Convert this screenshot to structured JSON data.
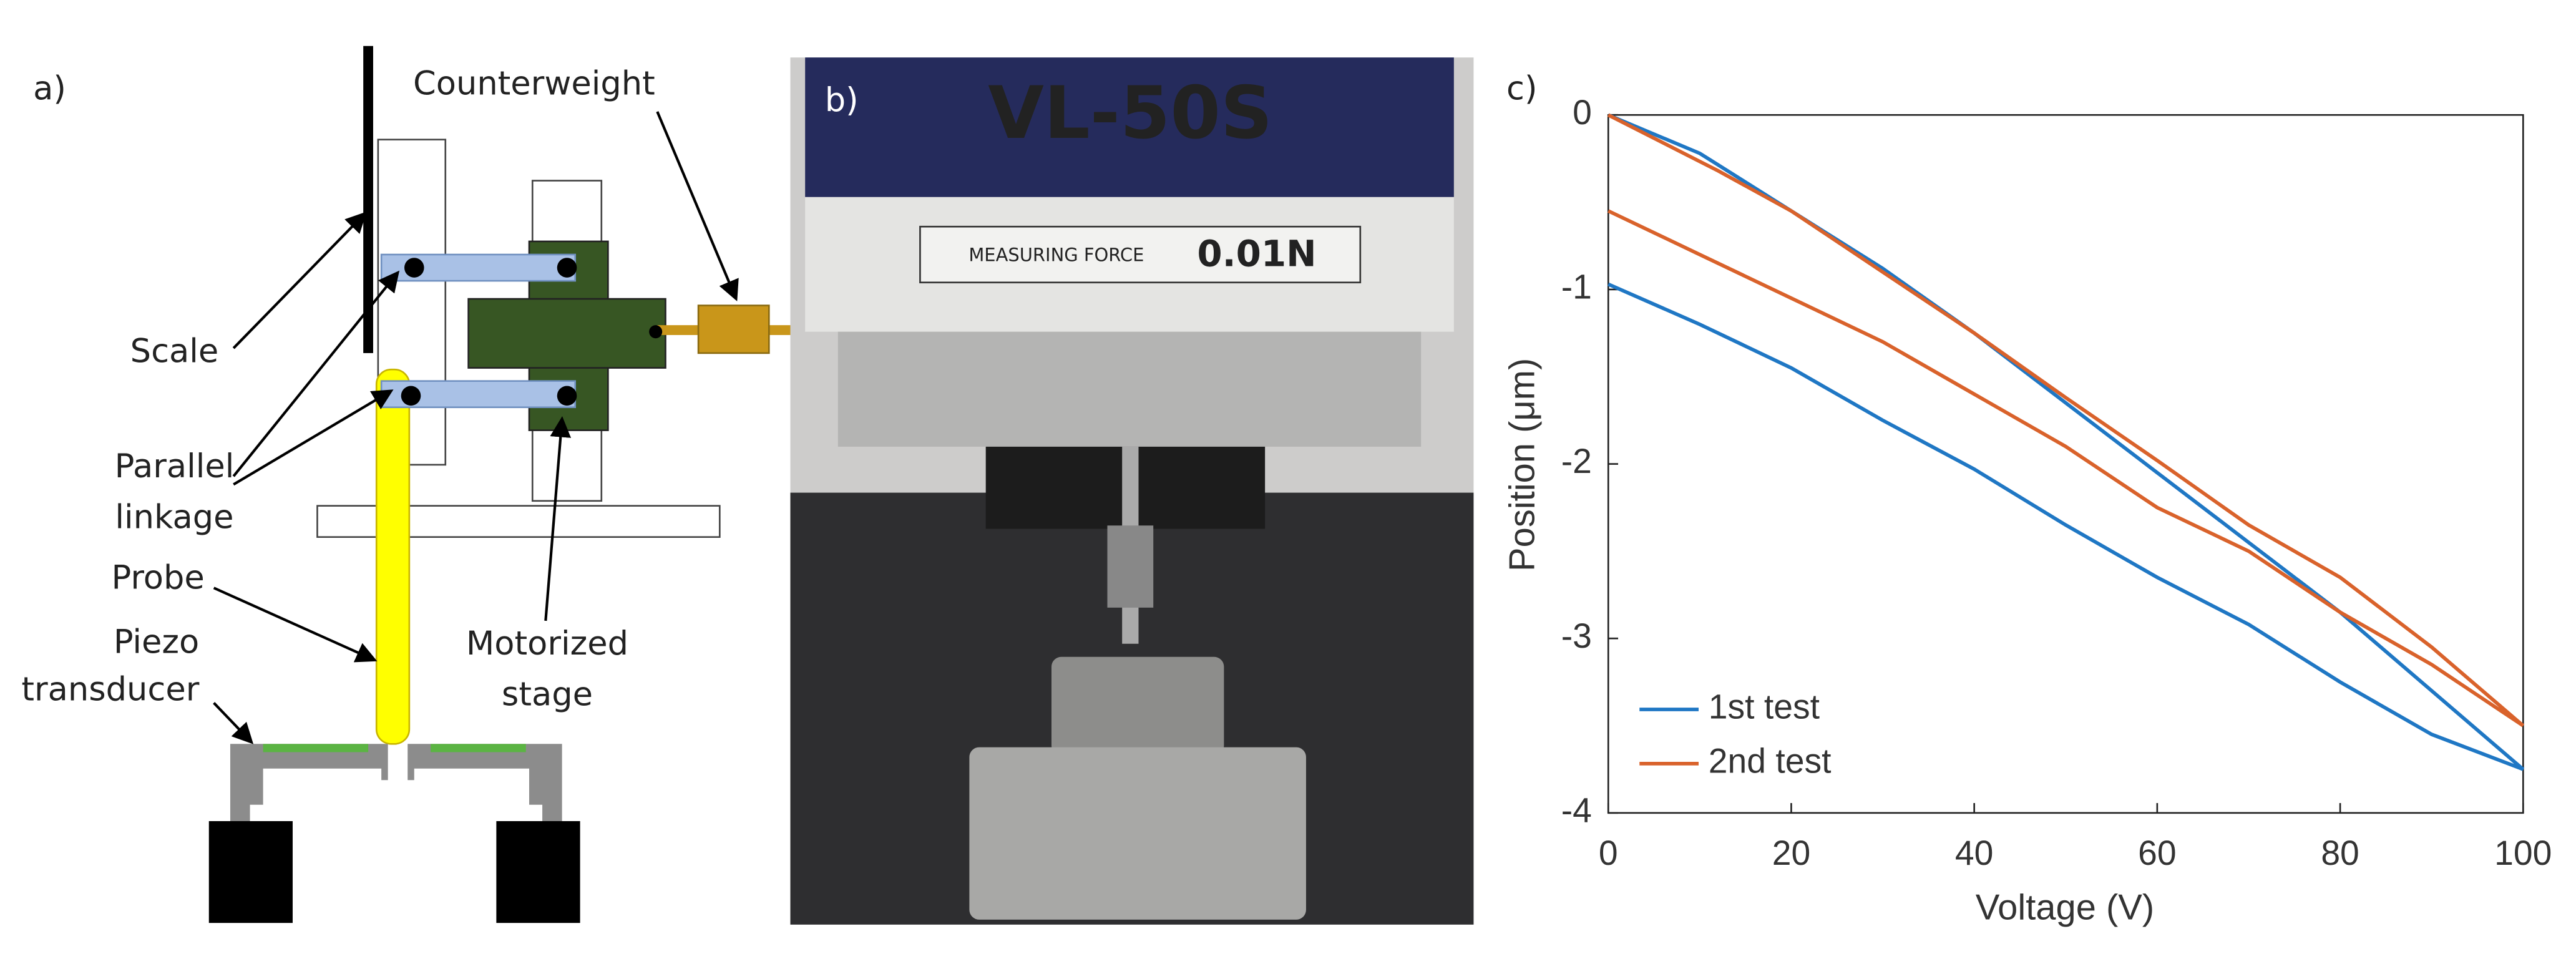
{
  "panel_a": {
    "label": "a)",
    "counterweight": "Counterweight",
    "scale": "Scale",
    "parallel": "Parallel",
    "linkage": "linkage",
    "probe": "Probe",
    "piezo": "Piezo",
    "transducer": "transducer",
    "motorized": "Motorized",
    "stage": "stage"
  },
  "panel_b": {
    "label": "b)",
    "model": "VL-50S",
    "force_label": "MEASURING FORCE",
    "force_value": "0.01N"
  },
  "chart_data": {
    "type": "line",
    "panel_label": "c)",
    "x_label": "Voltage (V)",
    "y_label": "Position (μm)",
    "xlim": [
      0,
      100
    ],
    "ylim": [
      -4,
      0
    ],
    "xticks": [
      0,
      20,
      40,
      60,
      80,
      100
    ],
    "yticks": [
      0,
      -1,
      -2,
      -3,
      -4
    ],
    "legend": "lower left",
    "series": [
      {
        "name": "1st test",
        "color": "#1f77c4",
        "x": [
          0,
          10,
          20,
          30,
          40,
          50,
          60,
          70,
          80,
          90,
          100,
          90,
          80,
          70,
          60,
          50,
          40,
          30,
          20,
          10,
          0
        ],
        "values": [
          -0.97,
          -1.2,
          -1.45,
          -1.75,
          -2.03,
          -2.35,
          -2.65,
          -2.92,
          -3.25,
          -3.55,
          -3.75,
          -3.3,
          -2.85,
          -2.45,
          -2.05,
          -1.65,
          -1.25,
          -0.88,
          -0.55,
          -0.22,
          0
        ]
      },
      {
        "name": "2nd test",
        "color": "#d9622b",
        "x": [
          0,
          10,
          20,
          30,
          40,
          50,
          60,
          70,
          80,
          90,
          100,
          90,
          80,
          70,
          60,
          50,
          40,
          30,
          20,
          12,
          0
        ],
        "values": [
          -0.55,
          -0.8,
          -1.05,
          -1.3,
          -1.6,
          -1.9,
          -2.25,
          -2.5,
          -2.85,
          -3.15,
          -3.5,
          -3.05,
          -2.65,
          -2.35,
          -1.98,
          -1.62,
          -1.25,
          -0.9,
          -0.55,
          -0.32,
          0
        ]
      }
    ]
  }
}
